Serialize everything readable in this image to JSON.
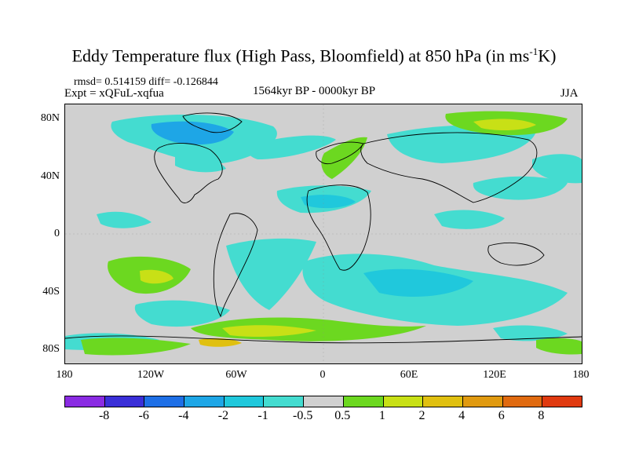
{
  "title": "Eddy Temperature flux (High Pass, Bloomfield) at 850 hPa (in ms",
  "title_unit_sup": "-1",
  "title_tail": "K)",
  "stats": "rmsd= 0.514159 diff= -0.126844",
  "expt": "Expt = xQFuL-xqfua",
  "period": "1564kyr BP - 0000kyr BP",
  "season": "JJA",
  "axes": {
    "y_labels": [
      "80N",
      "40N",
      "0",
      "40S",
      "80S"
    ],
    "x_labels": [
      "180",
      "120W",
      "60W",
      "0",
      "60E",
      "120E",
      "180"
    ]
  },
  "legend": {
    "colors": [
      "#8a2be2",
      "#3a2fd8",
      "#1e6fe6",
      "#1ea6e6",
      "#20c8dc",
      "#44dcd0",
      "#d0d0d0",
      "#6cd820",
      "#c8e016",
      "#e0c010",
      "#e09a10",
      "#e06a10",
      "#e03a10"
    ],
    "labels": [
      "-8",
      "-6",
      "-4",
      "-2",
      "-1",
      "-0.5",
      "0.5",
      "1",
      "2",
      "4",
      "6",
      "8"
    ]
  },
  "map_colors": {
    "background": "#d0d0d0",
    "neg_light": "#44dcd0",
    "neg_mid": "#20c8dc",
    "neg_strong": "#1ea6e6",
    "pos_light": "#6cd820",
    "pos_mid": "#c8e016",
    "pos_strong": "#e0c010",
    "pos_stronger": "#e09a10"
  }
}
